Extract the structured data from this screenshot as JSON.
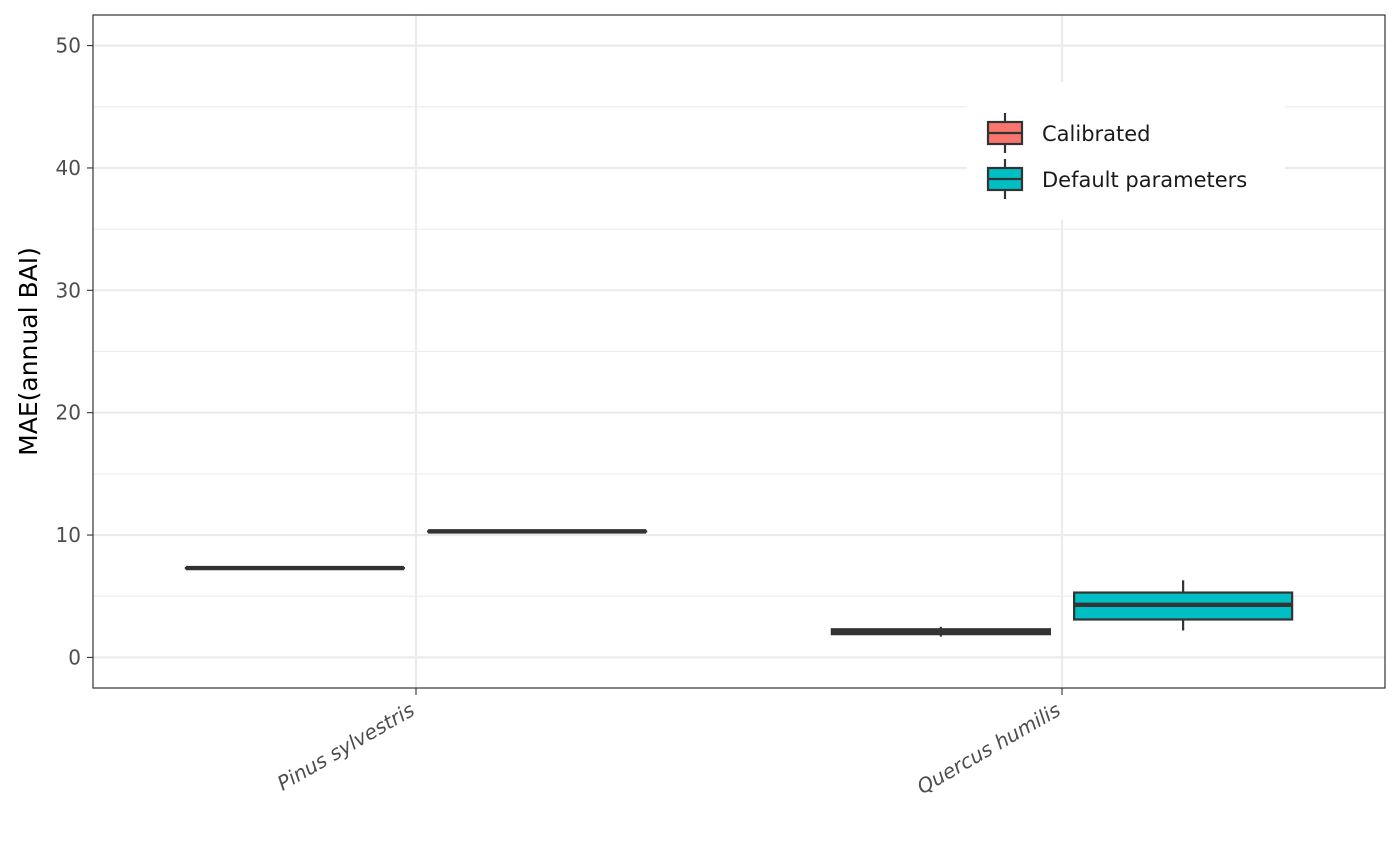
{
  "chart_data": {
    "type": "box",
    "ylabel": "MAE(annual BAI)",
    "xlabel": "",
    "ylim": [
      -2.5,
      52.5
    ],
    "y_major_ticks": [
      0,
      10,
      20,
      30,
      40,
      50
    ],
    "y_minor_ticks": [
      5,
      15,
      25,
      35,
      45
    ],
    "grid": true,
    "categories": [
      "Pinus sylvestris",
      "Quercus humilis"
    ],
    "legend": {
      "position": "top-right",
      "entries": [
        "Calibrated",
        "Default parameters"
      ]
    },
    "series": [
      {
        "name": "Calibrated",
        "color": "#F8766D",
        "boxes": [
          {
            "category": "Pinus sylvestris",
            "min": 7.3,
            "q1": 7.3,
            "median": 7.3,
            "q3": 7.3,
            "max": 7.3
          },
          {
            "category": "Quercus humilis",
            "min": 1.7,
            "q1": 1.9,
            "median": 2.1,
            "q3": 2.3,
            "max": 2.5
          }
        ]
      },
      {
        "name": "Default parameters",
        "color": "#00BFC4",
        "boxes": [
          {
            "category": "Pinus sylvestris",
            "min": 10.3,
            "q1": 10.3,
            "median": 10.3,
            "q3": 10.3,
            "max": 10.3
          },
          {
            "category": "Quercus humilis",
            "min": 2.2,
            "q1": 3.1,
            "median": 4.3,
            "q3": 5.3,
            "max": 6.3
          }
        ]
      }
    ]
  }
}
